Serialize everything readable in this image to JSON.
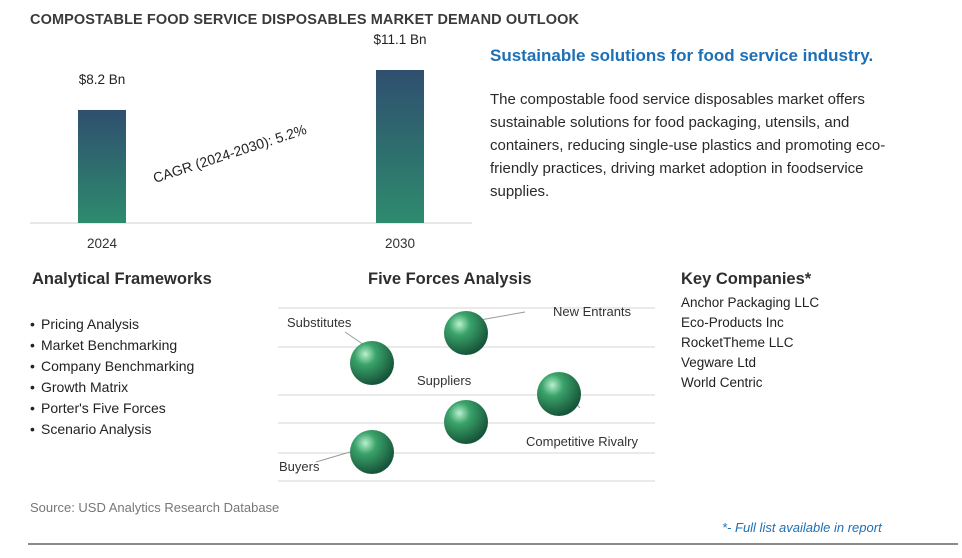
{
  "header": {
    "title": "COMPOSTABLE FOOD SERVICE DISPOSABLES MARKET DEMAND OUTLOOK"
  },
  "chart_data": {
    "type": "bar",
    "categories": [
      "2024",
      "2030"
    ],
    "values": [
      8.2,
      11.1
    ],
    "value_labels": [
      "$8.2 Bn",
      "$11.1 Bn"
    ],
    "annotation": "CAGR (2024-2030):  5.2%",
    "bar_color_top": "#2f4f6f",
    "bar_color_bottom": "#2e8b6e"
  },
  "summary": {
    "headline": "Sustainable solutions for food service industry.",
    "description": "The compostable food service disposables market offers sustainable solutions for food packaging, utensils, and containers, reducing single-use plastics and promoting eco-friendly practices, driving market adoption in foodservice supplies."
  },
  "frameworks": {
    "heading": "Analytical Frameworks",
    "bullet": "•",
    "items": [
      "Pricing Analysis",
      "Market Benchmarking",
      "Company Benchmarking",
      "Growth Matrix",
      "Porter's Five Forces",
      "Scenario Analysis"
    ]
  },
  "five_forces": {
    "heading": "Five Forces Analysis",
    "labels": {
      "substitutes": "Substitutes",
      "new_entrants": "New Entrants",
      "suppliers": "Suppliers",
      "competitive_rivalry": "Competitive Rivalry",
      "buyers": "Buyers"
    },
    "sphere_color": "#3aa36a"
  },
  "companies": {
    "heading": "Key Companies*",
    "items": [
      "Anchor Packaging LLC",
      "Eco-Products Inc",
      "RocketTheme LLC",
      "Vegware Ltd",
      "World Centric"
    ]
  },
  "footer": {
    "source": "Source: USD Analytics Research Database",
    "note": "*- Full list available in report"
  }
}
